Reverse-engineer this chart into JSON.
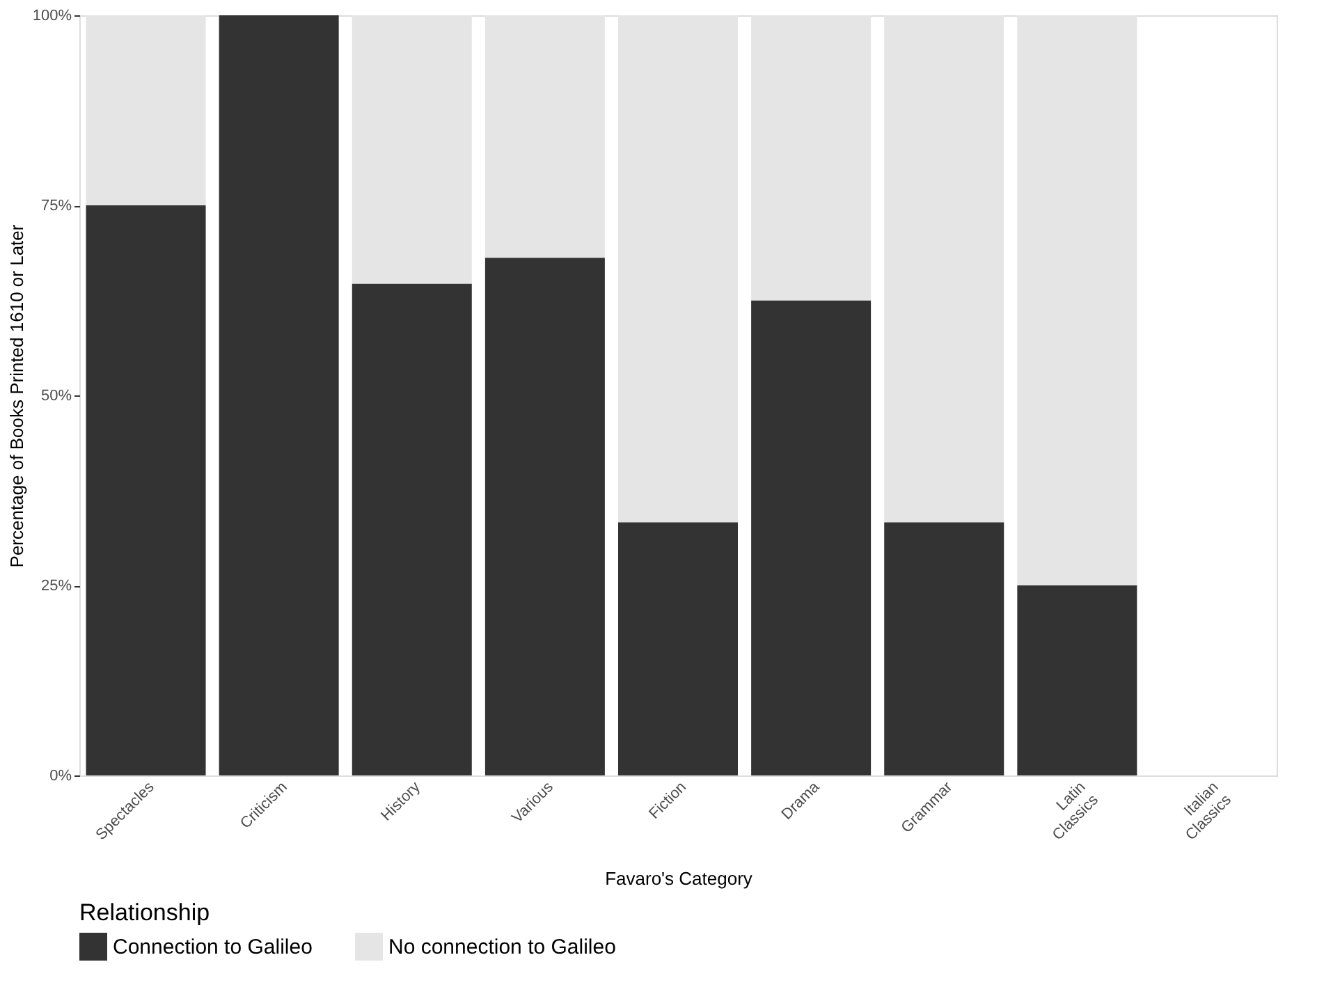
{
  "chart_data": {
    "type": "bar",
    "stacked": true,
    "xlabel": "Favaro's Category",
    "ylabel": "Percentage of Books Printed 1610 or Later",
    "legend_title": "Relationship",
    "categories": [
      "Spectacles",
      "Criticism",
      "History",
      "Various",
      "Fiction",
      "Drama",
      "Grammar",
      "Latin Classics",
      "Italian Classics"
    ],
    "series": [
      {
        "name": "Connection to Galileo",
        "color": "#333333",
        "values": [
          75,
          100,
          64.7,
          68.1,
          33.3,
          62.5,
          33.3,
          25,
          null
        ]
      },
      {
        "name": "No connection to Galileo",
        "color": "#e5e5e5",
        "values": [
          25,
          0,
          35.3,
          31.9,
          66.7,
          37.5,
          66.7,
          75,
          null
        ]
      }
    ],
    "ylim": [
      0,
      100
    ],
    "yticks": [
      {
        "value": 0,
        "label": "0%"
      },
      {
        "value": 25,
        "label": "25%"
      },
      {
        "value": 50,
        "label": "50%"
      },
      {
        "value": 75,
        "label": "75%"
      },
      {
        "value": 100,
        "label": "100%"
      }
    ],
    "grid": false,
    "legend": "bottom left"
  }
}
